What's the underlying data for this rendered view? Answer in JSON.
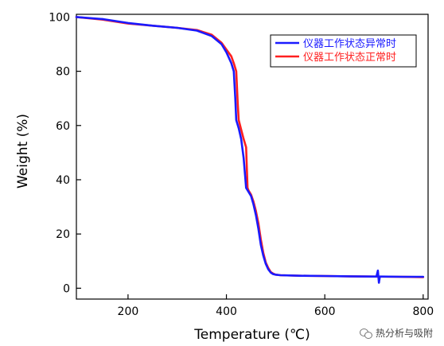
{
  "chart_data": {
    "type": "line",
    "xlabel": "Temperature (℃)",
    "ylabel": "Weight (%)",
    "xlim": [
      95,
      810
    ],
    "ylim": [
      -4,
      101
    ],
    "xticks": [
      200,
      400,
      600,
      800
    ],
    "yticks": [
      0,
      20,
      40,
      60,
      80,
      100
    ],
    "legend_position": "top-right",
    "grid": false,
    "series": [
      {
        "name": "仪器工作状态异常时",
        "color": "#1a1aff",
        "x": [
          95,
          150,
          200,
          250,
          300,
          340,
          370,
          390,
          400,
          410,
          415,
          418,
          420,
          425,
          430,
          435,
          440,
          445,
          450,
          455,
          460,
          465,
          470,
          475,
          480,
          485,
          490,
          495,
          500,
          510,
          550,
          600,
          650,
          700,
          705,
          708,
          710,
          712,
          715,
          760,
          800
        ],
        "values": [
          100,
          99.2,
          97.8,
          96.8,
          96.0,
          95.0,
          93.0,
          90.0,
          87.0,
          83.0,
          80.0,
          70.0,
          62.0,
          59.0,
          55.0,
          48.0,
          37.0,
          35.5,
          34.0,
          31.0,
          27.0,
          22.0,
          16.0,
          12.0,
          9.0,
          7.0,
          5.8,
          5.2,
          5.0,
          4.8,
          4.6,
          4.5,
          4.4,
          4.3,
          4.3,
          6.5,
          2.0,
          4.3,
          4.3,
          4.2,
          4.2
        ]
      },
      {
        "name": "仪器工作状态正常时",
        "color": "#ff2020",
        "x": [
          95,
          150,
          200,
          250,
          300,
          340,
          370,
          390,
          400,
          410,
          415,
          420,
          423,
          425,
          430,
          435,
          440,
          443,
          445,
          450,
          455,
          460,
          465,
          470,
          475,
          480,
          485,
          490,
          495,
          500,
          510,
          550,
          600,
          650,
          700,
          750,
          800
        ],
        "values": [
          100,
          99.0,
          97.6,
          96.8,
          96.0,
          95.2,
          93.5,
          90.5,
          88.0,
          85.5,
          83.0,
          80.0,
          68.0,
          62.0,
          58.5,
          55.0,
          52.0,
          37.0,
          36.0,
          34.5,
          32.0,
          28.5,
          24.0,
          18.0,
          13.0,
          9.5,
          7.5,
          6.0,
          5.4,
          5.0,
          4.8,
          4.6,
          4.5,
          4.4,
          4.3,
          4.2,
          4.1
        ]
      }
    ]
  },
  "watermark": {
    "text": "热分析与吸附",
    "icon": "wechat-icon"
  }
}
